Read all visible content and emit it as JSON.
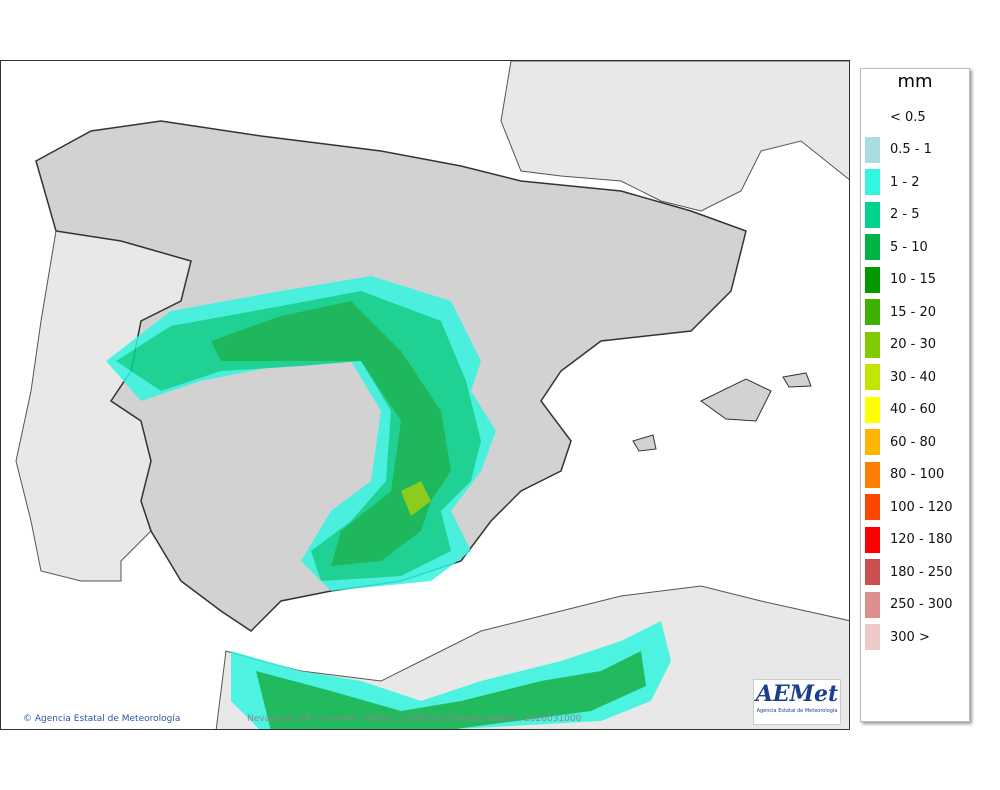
{
  "map": {
    "credit": "Agencia Estatal de Meteorología",
    "caption": "Nevada en 24 h máxima. Validez: 20260310 Pasada modelo: 2026031000",
    "logo_text": "AEMet",
    "logo_subtext": "Agencia Estatal de Meteorología"
  },
  "legend": {
    "title": "mm",
    "items": [
      {
        "label": "< 0.5",
        "color": "#ffffff"
      },
      {
        "label": "0.5 - 1",
        "color": "#a9dce3"
      },
      {
        "label": "1 - 2",
        "color": "#33f5e0"
      },
      {
        "label": "2 - 5",
        "color": "#00d38a"
      },
      {
        "label": "5 - 10",
        "color": "#00b347"
      },
      {
        "label": "10 - 15",
        "color": "#009a00"
      },
      {
        "label": "15 - 20",
        "color": "#3fb000"
      },
      {
        "label": "20 - 30",
        "color": "#80cc00"
      },
      {
        "label": "30 - 40",
        "color": "#c3e600"
      },
      {
        "label": "40 - 60",
        "color": "#ffff00"
      },
      {
        "label": "60 - 80",
        "color": "#ffb400"
      },
      {
        "label": "80 - 100",
        "color": "#ff7d00"
      },
      {
        "label": "100 - 120",
        "color": "#ff4600"
      },
      {
        "label": "120 - 180",
        "color": "#ff0000"
      },
      {
        "label": "180 - 250",
        "color": "#cc5050"
      },
      {
        "label": "250 - 300",
        "color": "#dd8e8e"
      },
      {
        "label": "300 >",
        "color": "#efc8c8"
      }
    ]
  }
}
